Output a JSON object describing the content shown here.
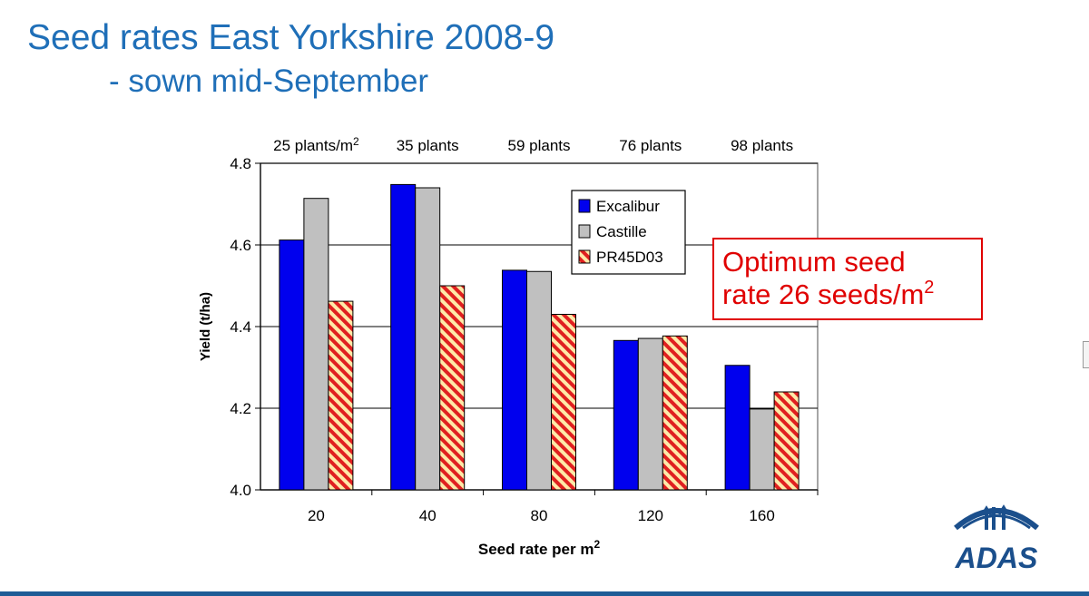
{
  "slide": {
    "title": "Seed rates East Yorkshire 2008-9",
    "subtitle": "- sown mid-September"
  },
  "callout": {
    "line1": "Optimum seed",
    "line2_text": "rate 26 seeds/m",
    "line2_sup": "2"
  },
  "logo": {
    "text": "ADAS",
    "color": "#1b4f8c"
  },
  "chart_data": {
    "type": "bar",
    "xlabel": "Seed rate per m",
    "xlabel_sup": "2",
    "ylabel": "Yield (t/ha)",
    "ylim": [
      4.0,
      4.8
    ],
    "yticks": [
      4.0,
      4.2,
      4.4,
      4.6,
      4.8
    ],
    "ytick_labels": [
      "4.0",
      "4.2",
      "4.4",
      "4.6",
      "4.8"
    ],
    "gridlines": [
      4.2,
      4.4,
      4.6,
      4.8
    ],
    "categories": [
      "20",
      "40",
      "80",
      "120",
      "160"
    ],
    "plant_annotations": [
      "25 plants/m",
      "35 plants",
      "59 plants",
      "76 plants",
      "98 plants"
    ],
    "plant_annotation_sup": "2",
    "legend_position": "top-right",
    "series": [
      {
        "name": "Excalibur",
        "color": "#0000ee",
        "pattern": "solid",
        "values": [
          4.612,
          4.748,
          4.538,
          4.366,
          4.305
        ]
      },
      {
        "name": "Castille",
        "color": "#c0c0c0",
        "pattern": "solid",
        "values": [
          4.714,
          4.74,
          4.535,
          4.371,
          4.198
        ]
      },
      {
        "name": "PR45D03",
        "color": "#e02020",
        "pattern": "diagonal-stripes",
        "values": [
          4.462,
          4.5,
          4.43,
          4.377,
          4.24
        ]
      }
    ]
  }
}
